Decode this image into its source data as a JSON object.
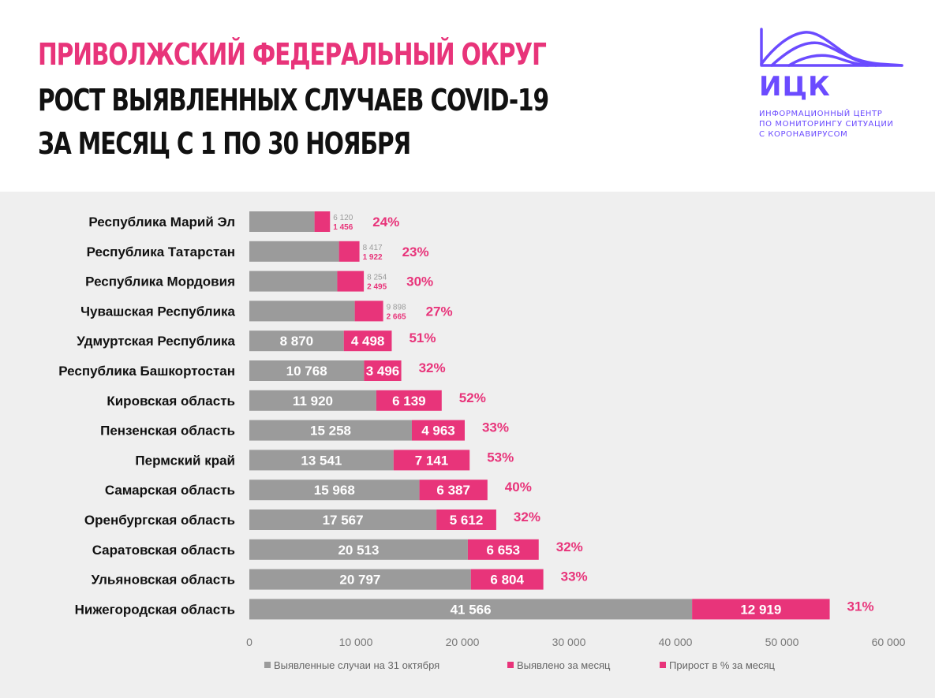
{
  "header": {
    "title_line1": "ПРИВОЛЖСКИЙ ФЕДЕРАЛЬНЫЙ ОКРУГ",
    "title_line2": "РОСТ ВЫЯВЛЕННЫХ СЛУЧАЕВ COVID-19",
    "title_line3": "ЗА МЕСЯЦ С 1 ПО 30 НОЯБРЯ"
  },
  "logo": {
    "abbr": "ИЦК",
    "line1": "ИНФОРМАЦИОННЫЙ ЦЕНТР",
    "line2": "ПО МОНИТОРИНГУ СИТУАЦИИ",
    "line3": "С КОРОНАВИРУСОМ",
    "color": "#6b4bff"
  },
  "colors": {
    "gray": "#9b9b9b",
    "pink": "#e8347a",
    "title_pink": "#e8347a"
  },
  "chart_data": {
    "type": "bar",
    "orientation": "horizontal",
    "stacked": true,
    "categories": [
      "Республика Марий Эл",
      "Республика Татарстан",
      "Республика Мордовия",
      "Чувашская Республика",
      "Удмуртская Республика",
      "Республика Башкортостан",
      "Кировская область",
      "Пензенская область",
      "Пермский край",
      "Самарская область",
      "Оренбургская область",
      "Саратовская область",
      "Ульяновская область",
      "Нижегородская область"
    ],
    "series": [
      {
        "name": "Выявленные случаи на 31 октября",
        "color": "#9b9b9b",
        "values": [
          6120,
          8417,
          8254,
          9898,
          8870,
          10768,
          11920,
          15258,
          13541,
          15968,
          17567,
          20513,
          20797,
          41566
        ],
        "labels": [
          "6 120",
          "8 417",
          "8 254",
          "9 898",
          "8 870",
          "10 768",
          "11 920",
          "15 258",
          "13 541",
          "15 968",
          "17 567",
          "20 513",
          "20 797",
          "41 566"
        ]
      },
      {
        "name": "Выявлено за месяц",
        "color": "#e8347a",
        "values": [
          1456,
          1922,
          2495,
          2665,
          4498,
          3496,
          6139,
          4963,
          7141,
          6387,
          5612,
          6653,
          6804,
          12919
        ],
        "labels": [
          "1 456",
          "1 922",
          "2 495",
          "2 665",
          "4 498",
          "3 496",
          "6 139",
          "4 963",
          "7 141",
          "6 387",
          "5 612",
          "6 653",
          "6 804",
          "12 919"
        ]
      }
    ],
    "growth_series_name": "Прирост в % за месяц",
    "growth_percent": [
      "24%",
      "23%",
      "30%",
      "27%",
      "51%",
      "32%",
      "52%",
      "33%",
      "53%",
      "40%",
      "32%",
      "32%",
      "33%",
      "31%"
    ],
    "x_ticks": [
      "0",
      "10 000",
      "20 000",
      "30 000",
      "40 000",
      "50 000",
      "60 000"
    ],
    "xlim": [
      0,
      60000
    ],
    "grid": false,
    "legend_position": "bottom"
  }
}
